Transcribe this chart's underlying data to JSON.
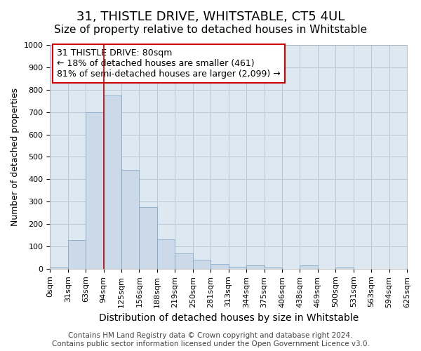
{
  "title": "31, THISTLE DRIVE, WHITSTABLE, CT5 4UL",
  "subtitle": "Size of property relative to detached houses in Whitstable",
  "xlabel": "Distribution of detached houses by size in Whitstable",
  "ylabel": "Number of detached properties",
  "bin_labels": [
    "0sqm",
    "31sqm",
    "63sqm",
    "94sqm",
    "125sqm",
    "156sqm",
    "188sqm",
    "219sqm",
    "250sqm",
    "281sqm",
    "313sqm",
    "344sqm",
    "375sqm",
    "406sqm",
    "438sqm",
    "469sqm",
    "500sqm",
    "531sqm",
    "563sqm",
    "594sqm",
    "625sqm"
  ],
  "bar_heights": [
    5,
    128,
    700,
    775,
    443,
    275,
    133,
    70,
    40,
    22,
    10,
    15,
    5,
    0,
    15,
    0,
    5,
    0,
    0,
    0
  ],
  "property_line_x": 3.0,
  "annotation_text": "31 THISTLE DRIVE: 80sqm\n← 18% of detached houses are smaller (461)\n81% of semi-detached houses are larger (2,099) →",
  "bar_color": "#ccd9e8",
  "bar_edge_color": "#7aa0c0",
  "line_color": "#bb0000",
  "annotation_box_color": "#ffffff",
  "annotation_box_edge": "#cc0000",
  "plot_bg_color": "#dde8f0",
  "background_color": "#ffffff",
  "grid_color": "#b8c8d8",
  "ylim": [
    0,
    1000
  ],
  "yticks": [
    0,
    100,
    200,
    300,
    400,
    500,
    600,
    700,
    800,
    900,
    1000
  ],
  "footer_text": "Contains HM Land Registry data © Crown copyright and database right 2024.\nContains public sector information licensed under the Open Government Licence v3.0.",
  "title_fontsize": 13,
  "subtitle_fontsize": 11,
  "xlabel_fontsize": 10,
  "ylabel_fontsize": 9,
  "tick_fontsize": 8,
  "annotation_fontsize": 9,
  "footer_fontsize": 7.5
}
